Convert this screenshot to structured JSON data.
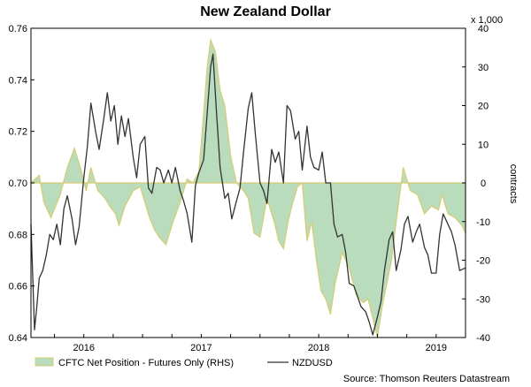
{
  "chart_data": {
    "type": "line",
    "title": "New Zealand Dollar",
    "source": "Source: Thomson Reuters Datastream",
    "left_axis": {
      "ylim": [
        0.64,
        0.76
      ],
      "ticks": [
        "0.64",
        "0.66",
        "0.68",
        "0.70",
        "0.72",
        "0.74",
        "0.76"
      ]
    },
    "right_axis": {
      "unit": "x 1,000",
      "label": "contracts",
      "ylim": [
        -40,
        40
      ],
      "ticks": [
        "-40",
        "-30",
        "-20",
        "-10",
        "0",
        "10",
        "20",
        "30",
        "40"
      ]
    },
    "x_axis": {
      "range": [
        2015.55,
        2019.25
      ],
      "ticks": [
        "2016",
        "2017",
        "2018",
        "2019"
      ]
    },
    "legend": {
      "position": "bottom"
    },
    "grid": false,
    "colors": {
      "area_fill": "#b9dcbc",
      "area_edge": "#d8cc72",
      "line": "#333333"
    },
    "series": [
      {
        "name": "CFTC Net Position - Futures Only (RHS)",
        "kind": "area",
        "axis": "right",
        "x": [
          2015.55,
          2015.62,
          2015.66,
          2015.72,
          2015.8,
          2015.86,
          2015.92,
          2015.98,
          2016.02,
          2016.06,
          2016.12,
          2016.18,
          2016.22,
          2016.27,
          2016.3,
          2016.35,
          2016.42,
          2016.48,
          2016.52,
          2016.56,
          2016.6,
          2016.64,
          2016.7,
          2016.76,
          2016.82,
          2016.88,
          2016.93,
          2016.98,
          2017.02,
          2017.05,
          2017.08,
          2017.12,
          2017.16,
          2017.2,
          2017.25,
          2017.3,
          2017.36,
          2017.4,
          2017.45,
          2017.5,
          2017.56,
          2017.62,
          2017.66,
          2017.7,
          2017.74,
          2017.78,
          2017.82,
          2017.86,
          2017.9,
          2017.94,
          2017.98,
          2018.02,
          2018.06,
          2018.1,
          2018.14,
          2018.2,
          2018.26,
          2018.32,
          2018.38,
          2018.42,
          2018.46,
          2018.5,
          2018.54,
          2018.58,
          2018.62,
          2018.66,
          2018.72,
          2018.78,
          2018.84,
          2018.9,
          2018.96,
          2019.02,
          2019.05,
          2019.1,
          2019.16,
          2019.22,
          2019.25
        ],
        "values": [
          0,
          2,
          -5,
          -9,
          -3,
          4,
          9,
          3,
          -2,
          4,
          -2,
          -4,
          -6,
          -8,
          -11,
          -6,
          -2,
          -1,
          -5,
          -9,
          -12,
          -14,
          -16,
          -10,
          -5,
          1,
          0,
          3,
          18,
          30,
          37,
          34,
          24,
          20,
          7,
          0,
          -2,
          -4,
          -13,
          -14,
          -4,
          -10,
          -15,
          -17,
          -10,
          -5,
          -1,
          0,
          -15,
          -10,
          -20,
          -28,
          -30,
          -34,
          -26,
          -18,
          -22,
          -29,
          -31,
          -30,
          -35,
          -40,
          -32,
          -26,
          -20,
          -10,
          4,
          -2,
          -3,
          -8,
          -6,
          -7,
          -3,
          -8,
          -9,
          -11,
          -13
        ]
      },
      {
        "name": "NZDUSD",
        "kind": "line",
        "axis": "left",
        "x": [
          2015.55,
          2015.58,
          2015.6,
          2015.62,
          2015.65,
          2015.68,
          2015.71,
          2015.74,
          2015.77,
          2015.8,
          2015.83,
          2015.86,
          2015.9,
          2015.93,
          2015.96,
          2016.0,
          2016.03,
          2016.06,
          2016.1,
          2016.13,
          2016.17,
          2016.2,
          2016.23,
          2016.26,
          2016.29,
          2016.32,
          2016.35,
          2016.38,
          2016.42,
          2016.45,
          2016.48,
          2016.52,
          2016.55,
          2016.58,
          2016.62,
          2016.65,
          2016.68,
          2016.72,
          2016.75,
          2016.78,
          2016.82,
          2016.85,
          2016.88,
          2016.92,
          2016.95,
          2016.98,
          2017.02,
          2017.05,
          2017.08,
          2017.1,
          2017.13,
          2017.16,
          2017.2,
          2017.23,
          2017.26,
          2017.3,
          2017.33,
          2017.36,
          2017.4,
          2017.43,
          2017.46,
          2017.5,
          2017.53,
          2017.56,
          2017.6,
          2017.63,
          2017.66,
          2017.7,
          2017.73,
          2017.76,
          2017.8,
          2017.83,
          2017.86,
          2017.9,
          2017.93,
          2017.96,
          2018.0,
          2018.03,
          2018.06,
          2018.1,
          2018.13,
          2018.16,
          2018.2,
          2018.23,
          2018.26,
          2018.3,
          2018.33,
          2018.36,
          2018.4,
          2018.43,
          2018.46,
          2018.5,
          2018.53,
          2018.56,
          2018.6,
          2018.63,
          2018.66,
          2018.7,
          2018.73,
          2018.76,
          2018.8,
          2018.83,
          2018.86,
          2018.9,
          2018.93,
          2018.96,
          2019.0,
          2019.03,
          2019.06,
          2019.1,
          2019.13,
          2019.16,
          2019.2,
          2019.25
        ],
        "values": [
          0.684,
          0.643,
          0.652,
          0.663,
          0.666,
          0.672,
          0.68,
          0.678,
          0.684,
          0.676,
          0.69,
          0.695,
          0.686,
          0.676,
          0.683,
          0.702,
          0.714,
          0.731,
          0.72,
          0.713,
          0.725,
          0.735,
          0.724,
          0.73,
          0.715,
          0.726,
          0.718,
          0.725,
          0.71,
          0.702,
          0.715,
          0.718,
          0.698,
          0.696,
          0.706,
          0.705,
          0.7,
          0.705,
          0.7,
          0.706,
          0.697,
          0.693,
          0.688,
          0.677,
          0.699,
          0.704,
          0.709,
          0.727,
          0.745,
          0.75,
          0.727,
          0.706,
          0.694,
          0.696,
          0.686,
          0.693,
          0.698,
          0.712,
          0.729,
          0.735,
          0.719,
          0.7,
          0.697,
          0.692,
          0.713,
          0.708,
          0.712,
          0.7,
          0.73,
          0.728,
          0.717,
          0.72,
          0.705,
          0.722,
          0.71,
          0.706,
          0.705,
          0.712,
          0.7,
          0.7,
          0.684,
          0.679,
          0.68,
          0.673,
          0.661,
          0.66,
          0.656,
          0.652,
          0.65,
          0.646,
          0.641,
          0.648,
          0.654,
          0.666,
          0.678,
          0.681,
          0.666,
          0.674,
          0.684,
          0.687,
          0.677,
          0.681,
          0.684,
          0.675,
          0.672,
          0.665,
          0.665,
          0.68,
          0.688,
          0.684,
          0.681,
          0.676,
          0.666,
          0.667
        ]
      }
    ]
  }
}
